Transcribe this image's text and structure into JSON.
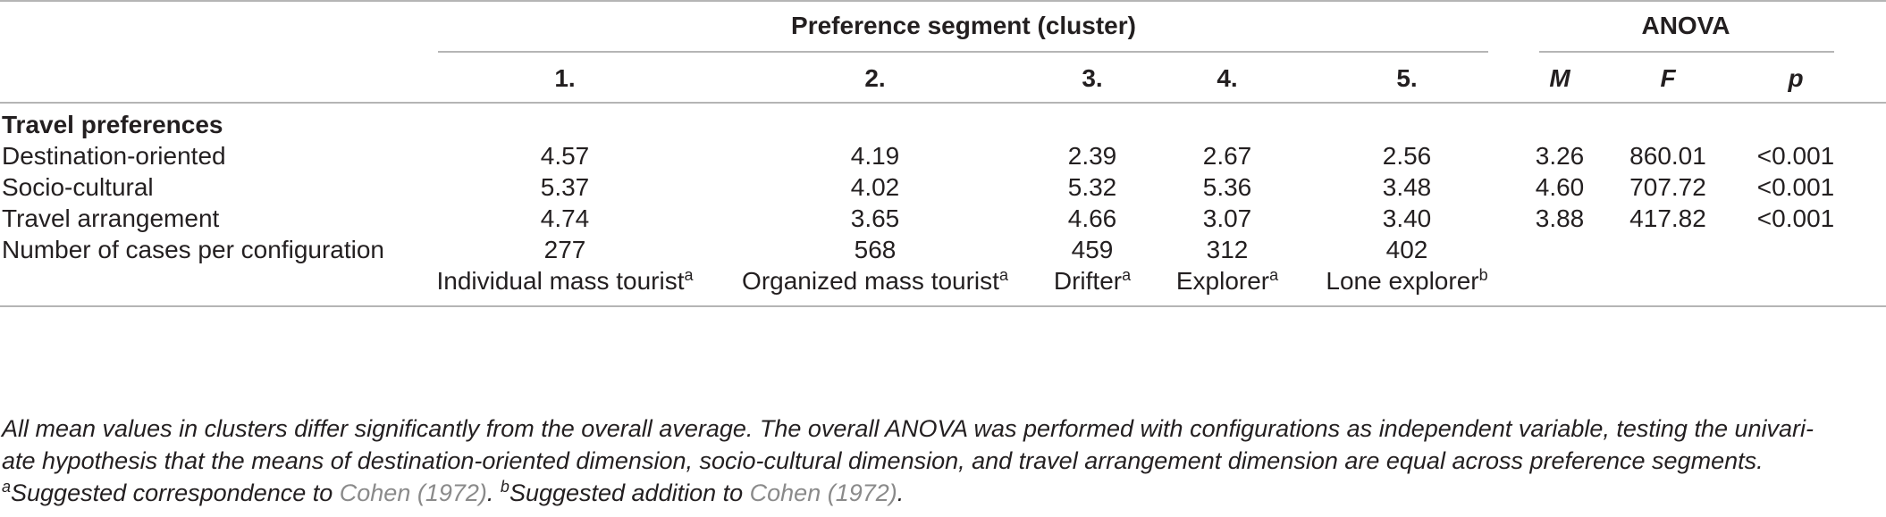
{
  "header": {
    "group_segment": "Preference segment (cluster)",
    "group_anova": "ANOVA",
    "columns": [
      "1.",
      "2.",
      "3.",
      "4.",
      "5.",
      "M",
      "F",
      "p"
    ]
  },
  "section_title": "Travel preferences",
  "rows": [
    {
      "label": "Destination-oriented",
      "values": [
        "4.57",
        "4.19",
        "2.39",
        "2.67",
        "2.56",
        "3.26",
        "860.01",
        "<0.001"
      ]
    },
    {
      "label": "Socio-cultural",
      "values": [
        "5.37",
        "4.02",
        "5.32",
        "5.36",
        "3.48",
        "4.60",
        "707.72",
        "<0.001"
      ]
    },
    {
      "label": "Travel arrangement",
      "values": [
        "4.74",
        "3.65",
        "4.66",
        "3.07",
        "3.40",
        "3.88",
        "417.82",
        "<0.001"
      ]
    },
    {
      "label": "Number of cases per configuration",
      "values": [
        "277",
        "568",
        "459",
        "312",
        "402"
      ]
    }
  ],
  "segment_names": [
    {
      "name": "Individual mass tourist",
      "mark": "a"
    },
    {
      "name": "Organized mass tourist",
      "mark": "a"
    },
    {
      "name": "Drifter",
      "mark": "a"
    },
    {
      "name": "Explorer",
      "mark": "a"
    },
    {
      "name": "Lone explorer",
      "mark": "b"
    }
  ],
  "footnote": {
    "text1": "All mean values in clusters differ significantly from the overall average. The overall ANOVA was performed with configurations as independent variable, testing the univari-",
    "text2": "ate hypothesis that the means of destination-oriented dimension, socio-cultural dimension, and travel arrangement dimension are equal across preference segments.",
    "mark_a": "a",
    "note_a": "Suggested correspondence to ",
    "ref_a": "Cohen (1972)",
    "period_a": ". ",
    "mark_b": "b",
    "note_b": "Suggested addition to ",
    "ref_b": "Cohen (1972)",
    "period_b": "."
  }
}
